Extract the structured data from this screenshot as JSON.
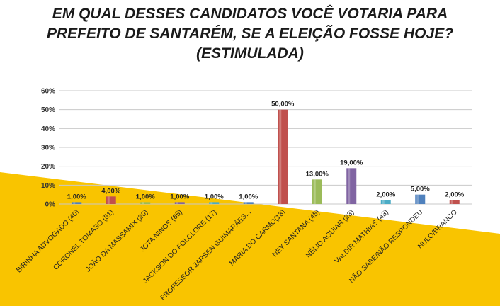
{
  "title": {
    "line1": "EM QUAL DESSES CANDIDATOS VOCÊ VOTARIA PARA",
    "line2": "PREFEITO DE SANTARÉM, SE A ELEIÇÃO FOSSE HOJE?",
    "line3": "(ESTIMULADA)"
  },
  "colors": {
    "background_band": "#F9C400",
    "gridline": "#C9C9C9"
  },
  "chart_data": {
    "type": "bar",
    "title": "EM QUAL DESSES CANDIDATOS VOCÊ VOTARIA PARA PREFEITO DE SANTARÉM, SE A ELEIÇÃO FOSSE HOJE? (ESTIMULADA)",
    "xlabel": "",
    "ylabel": "",
    "ylim": [
      0,
      60
    ],
    "y_ticks": [
      "0%",
      "10%",
      "20%",
      "30%",
      "40%",
      "50%",
      "60%"
    ],
    "grid": true,
    "legend": "none",
    "categories": [
      "BIRINHA ADVOGADO (40)",
      "CORONEL TOMASO (51)",
      "JOÃO DA MASSAMIX (20)",
      "JOTA NINOS (65)",
      "JACKSON DO FOLCLORE (17)",
      "PROFESSOR JARSEN GUIMARÃES...",
      "MARIA DO CARMO(13)",
      "NEY SANTANA (45)",
      "NÉLIO AGUIAR (23)",
      "VALDIR MATHIAS (43)",
      "NÃO SABE/NÃO RESPONDEU",
      "NULO/BRANCO"
    ],
    "values": [
      1,
      4,
      1,
      1,
      1,
      1,
      50,
      13,
      19,
      2,
      5,
      2
    ],
    "data_labels": [
      "1,00%",
      "4,00%",
      "1,00%",
      "1,00%",
      "1,00%",
      "1,00%",
      "50,00%",
      "13,00%",
      "19,00%",
      "2,00%",
      "5,00%",
      "2,00%"
    ],
    "bar_colors": [
      "#4F81BD",
      "#C0504D",
      "#9BBB59",
      "#8064A2",
      "#4BACC6",
      "#4F81BD",
      "#C0504D",
      "#9BBB59",
      "#8064A2",
      "#4BACC6",
      "#4F81BD",
      "#C0504D"
    ]
  }
}
